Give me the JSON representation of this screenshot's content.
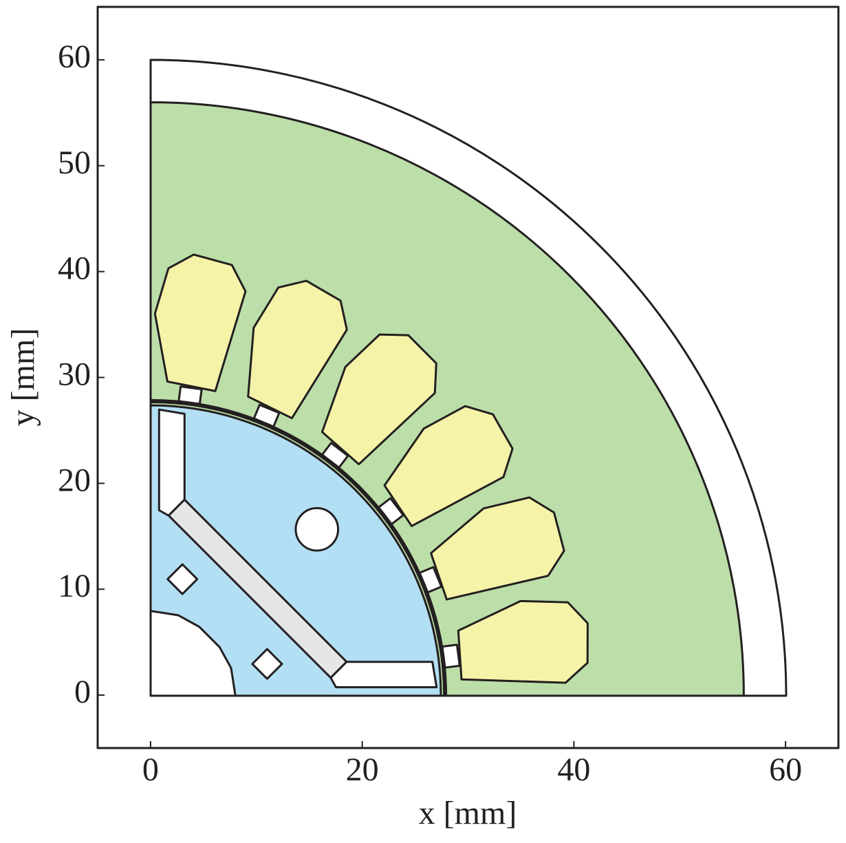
{
  "chart_data": {
    "type": "geometry",
    "xlabel": "x [mm]",
    "ylabel": "y [mm]",
    "xlim": [
      -5,
      65
    ],
    "ylim": [
      -5,
      65
    ],
    "xticks": [
      0,
      20,
      40,
      60
    ],
    "yticks": [
      0,
      10,
      20,
      30,
      40,
      50,
      60
    ]
  }
}
